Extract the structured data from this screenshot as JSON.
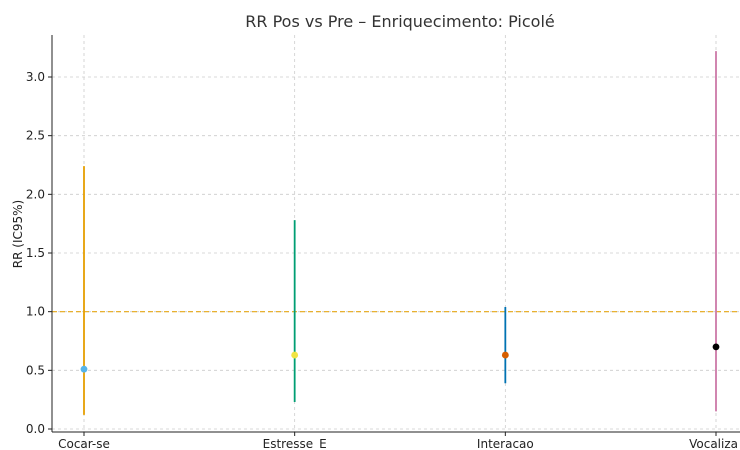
{
  "chart_data": {
    "type": "errorbar",
    "title": "RR Pos vs Pre – Enriquecimento: Picolé",
    "xlabel": "",
    "ylabel": "RR (IC95%)",
    "categories": [
      "Cocar-se",
      "Estresse_E",
      "Interacao",
      "Vocaliza"
    ],
    "points": [
      {
        "category": "Cocar-se",
        "rr": 0.51,
        "ci_low": 0.12,
        "ci_high": 2.24,
        "line_color": "#e69f00",
        "point_color": "#56b4e9"
      },
      {
        "category": "Estresse_E",
        "rr": 0.63,
        "ci_low": 0.23,
        "ci_high": 1.78,
        "line_color": "#009e73",
        "point_color": "#f0e442"
      },
      {
        "category": "Interacao",
        "rr": 0.63,
        "ci_low": 0.39,
        "ci_high": 1.04,
        "line_color": "#0072b2",
        "point_color": "#d55e00"
      },
      {
        "category": "Vocaliza",
        "rr": 0.7,
        "ci_low": 0.15,
        "ci_high": 3.22,
        "line_color": "#cc79a7",
        "point_color": "#000000"
      }
    ],
    "yticks": [
      "0.0",
      "0.5",
      "1.0",
      "1.5",
      "2.0",
      "2.5",
      "3.0"
    ],
    "ylim": [
      0,
      3.35
    ],
    "reference_line": {
      "value": 1.0,
      "color": "#e6a817",
      "style": "dashed"
    },
    "grid": true
  }
}
